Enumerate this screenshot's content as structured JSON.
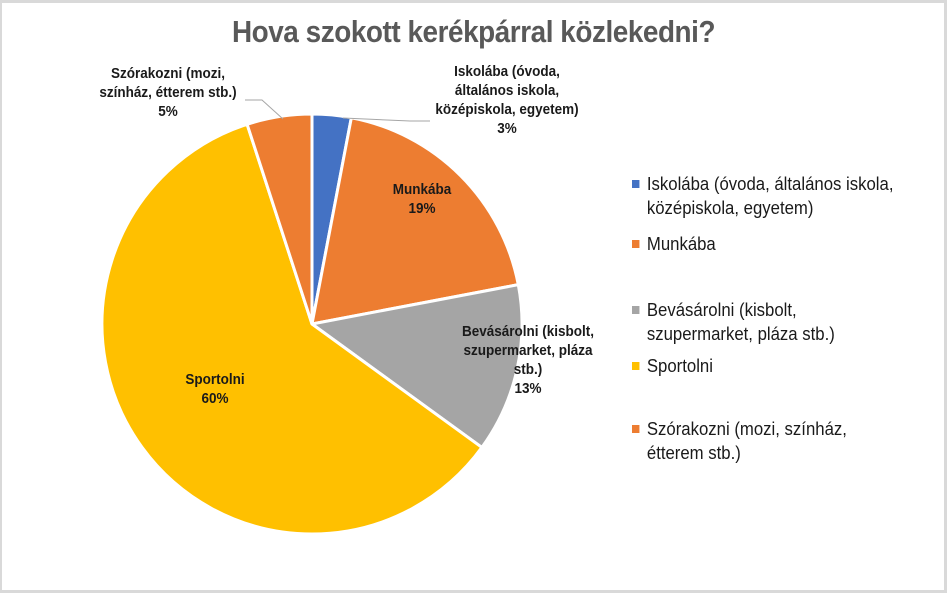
{
  "title": "Hova szokott kerékpárral közlekedni?",
  "legend": [
    {
      "label": "Iskolába (óvoda, általános iskola, középiskola, egyetem)",
      "color": "#4472c4"
    },
    {
      "label": "Munkába",
      "color": "#ed7d31"
    },
    {
      "label": "Bevásárolni (kisbolt, szupermarket, pláza stb.)",
      "color": "#a5a5a5"
    },
    {
      "label": "Sportolni",
      "color": "#ffc000"
    },
    {
      "label": "Szórakozni (mozi, színház, étterem stb.)",
      "color": "#ed7d31"
    }
  ],
  "data_labels": [
    {
      "name": "Iskolába (óvoda,\náltalános iskola,\nközépiskola, egyetem)",
      "pct": "3%"
    },
    {
      "name": "Munkába",
      "pct": "19%"
    },
    {
      "name": "Bevásárolni (kisbolt,\nszupermarket, pláza\nstb.)",
      "pct": "13%"
    },
    {
      "name": "Sportolni",
      "pct": "60%"
    },
    {
      "name": "Szórakozni (mozi,\nszínház, étterem stb.)",
      "pct": "5%"
    }
  ],
  "chart_data": {
    "type": "pie",
    "title": "Hova szokott kerékpárral közlekedni?",
    "categories": [
      "Iskolába (óvoda, általános iskola, középiskola, egyetem)",
      "Munkába",
      "Bevásárolni (kisbolt, szupermarket, pláza stb.)",
      "Sportolni",
      "Szórakozni (mozi, színház, étterem stb.)"
    ],
    "values": [
      3,
      19,
      13,
      60,
      5
    ],
    "unit": "%",
    "colors": [
      "#4472c4",
      "#ed7d31",
      "#a5a5a5",
      "#ffc000",
      "#ed7d31"
    ],
    "start_angle": "12 o'clock, clockwise",
    "legend_position": "right",
    "data_labels": "category name + percentage"
  }
}
